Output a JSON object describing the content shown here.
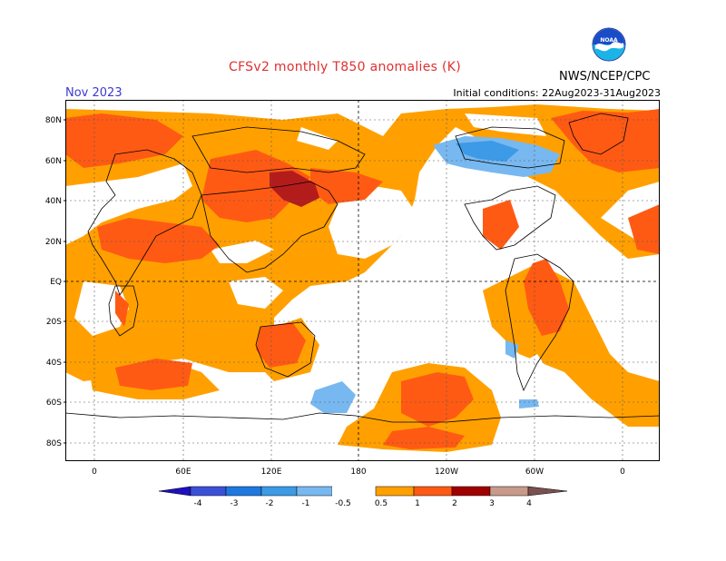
{
  "header": {
    "title": "CFSv2 monthly T850 anomalies (K)",
    "month": "Nov 2023",
    "initial_conditions": "Initial conditions: 22Aug2023-31Aug2023",
    "agency": "NWS/NCEP/CPC",
    "logo_text": "NOAA"
  },
  "map": {
    "lat_labels": [
      "80N",
      "60N",
      "40N",
      "20N",
      "EQ",
      "20S",
      "40S",
      "60S",
      "80S"
    ],
    "lon_labels": [
      "0",
      "60E",
      "120E",
      "180",
      "120W",
      "60W",
      "0"
    ]
  },
  "legend": {
    "labels": [
      "-4",
      "-3",
      "-2",
      "-1",
      "-0.5",
      "0.5",
      "1",
      "2",
      "3",
      "4"
    ],
    "colors": [
      "#1e10c0",
      "#3b50d8",
      "#1e78e0",
      "#3c9ae6",
      "#78b8f0",
      "#ffffff",
      "#ffa000",
      "#ff5a14",
      "#d83814",
      "#a00000",
      "#c89a8c",
      "#7a5050"
    ]
  },
  "palette": {
    "c05": "#ffa000",
    "c1": "#ff5a14",
    "c2": "#b41c1c",
    "neg05": "#78b8f0",
    "neg1": "#3c9ae6"
  }
}
